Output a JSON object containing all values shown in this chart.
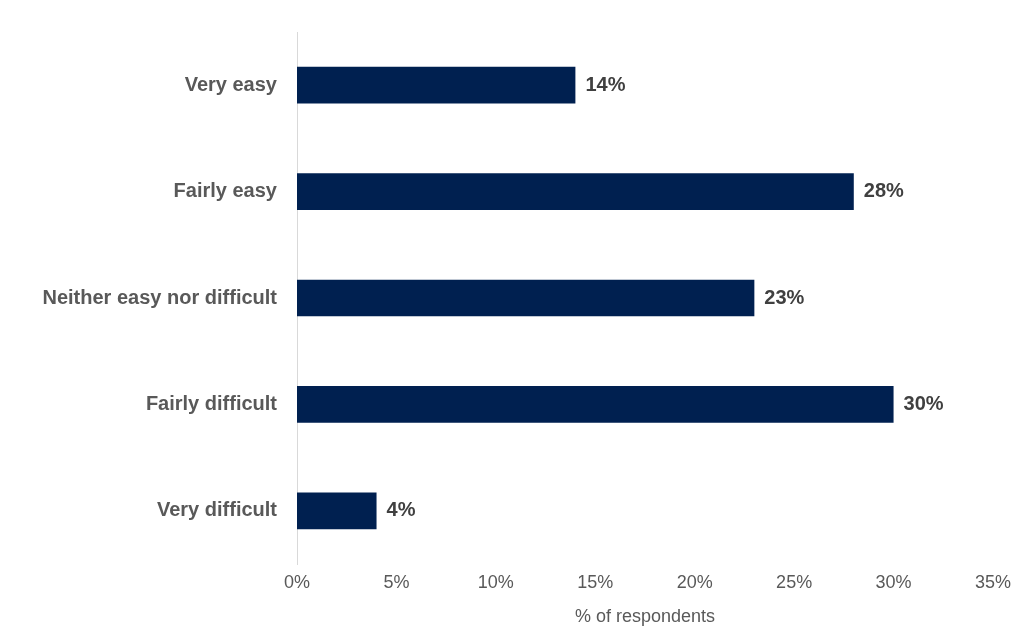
{
  "chart_data": {
    "type": "bar",
    "orientation": "horizontal",
    "xlabel": "% of respondents",
    "categories": [
      "Very easy",
      "Fairly easy",
      "Neither easy nor difficult",
      "Fairly difficult",
      "Very difficult"
    ],
    "values": [
      14,
      28,
      23,
      30,
      4
    ],
    "value_labels": [
      "14%",
      "28%",
      "23%",
      "30%",
      "4%"
    ],
    "color": "#002050",
    "xlim": [
      0,
      35
    ],
    "xticks": [
      {
        "value": 0,
        "label": "0%"
      },
      {
        "value": 5,
        "label": "5%"
      },
      {
        "value": 10,
        "label": "10%"
      },
      {
        "value": 15,
        "label": "15%"
      },
      {
        "value": 20,
        "label": "20%"
      },
      {
        "value": 25,
        "label": "25%"
      },
      {
        "value": 30,
        "label": "30%"
      },
      {
        "value": 35,
        "label": "35%"
      }
    ],
    "grid": false
  }
}
